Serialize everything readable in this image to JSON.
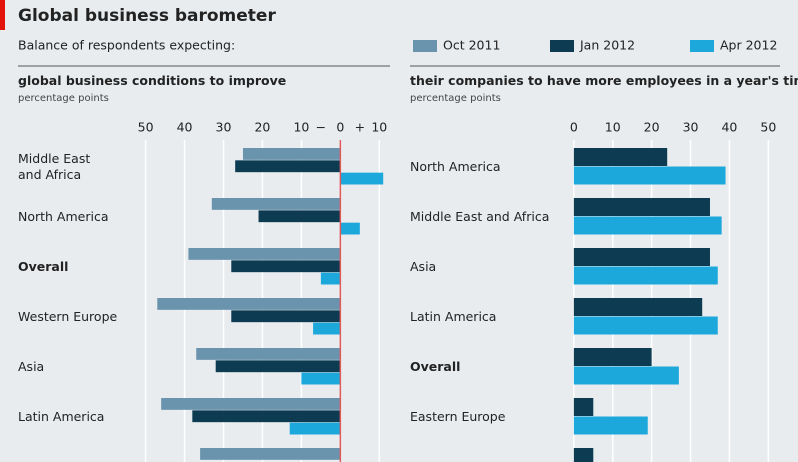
{
  "title": "Global business barometer",
  "subtitle": "Balance of respondents expecting:",
  "chart_data": [
    {
      "type": "hbar",
      "title": "global business conditions to improve",
      "subtitle": "percentage points",
      "categories": [
        "Middle East\nand Africa",
        "North America",
        "Overall",
        "Western Europe",
        "Asia",
        "Latin America",
        null
      ],
      "bold_categories": [
        2
      ],
      "series": [
        {
          "name": "Oct 2011",
          "color": "#6a94ad",
          "values": [
            -25,
            -33,
            -39,
            -47,
            -37,
            -46,
            -36
          ]
        },
        {
          "name": "Jan 2012",
          "color": "#0c3b52",
          "values": [
            -27,
            -21,
            -28,
            -28,
            -32,
            -38,
            null
          ]
        },
        {
          "name": "Apr 2012",
          "color": "#1da8dc",
          "values": [
            11,
            5,
            -5,
            -7,
            -10,
            -13,
            null
          ]
        }
      ],
      "xlim": [
        -54,
        13
      ],
      "xticks": [
        {
          "value": -50,
          "label": "50"
        },
        {
          "value": -40,
          "label": "40"
        },
        {
          "value": -30,
          "label": "30"
        },
        {
          "value": -20,
          "label": "20"
        },
        {
          "value": -10,
          "label": "10"
        },
        0,
        10
      ],
      "sign_labels": [
        "−",
        "+"
      ],
      "zero_line_color": "#e05a5a",
      "grid": true
    },
    {
      "type": "hbar",
      "title": "their companies to have more employees in a year's time",
      "subtitle": "percentage points",
      "categories": [
        "North America",
        "Middle East and Africa",
        "Asia",
        "Latin America",
        "Overall",
        "Eastern Europe",
        null
      ],
      "bold_categories": [
        4
      ],
      "series": [
        {
          "name": "Jan 2012",
          "color": "#0c3b52",
          "values": [
            24,
            35,
            35,
            33,
            20,
            5,
            5
          ]
        },
        {
          "name": "Apr 2012",
          "color": "#1da8dc",
          "values": [
            39,
            38,
            37,
            37,
            27,
            19,
            null
          ]
        }
      ],
      "xlim": [
        -1.5,
        53
      ],
      "xticks": [
        0,
        10,
        20,
        30,
        40,
        50
      ],
      "grid": true
    }
  ]
}
